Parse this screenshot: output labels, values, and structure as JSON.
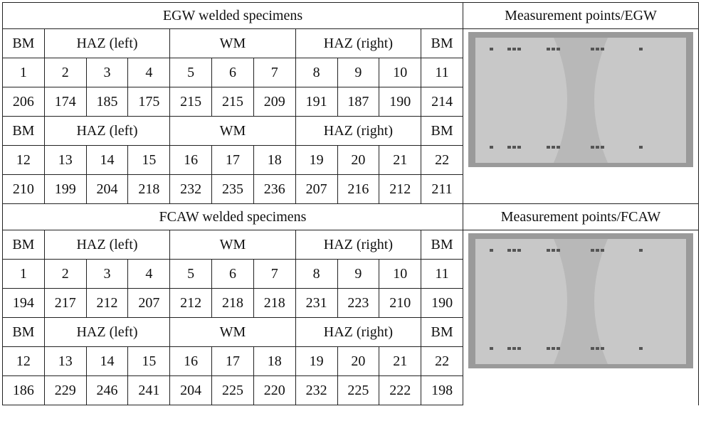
{
  "sections": [
    {
      "title": "EGW welded specimens",
      "image_caption": "Measurement points/EGW",
      "blocks": [
        {
          "groups": [
            "BM",
            "HAZ (left)",
            "WM",
            "HAZ (right)",
            "BM"
          ],
          "points": [
            1,
            2,
            3,
            4,
            5,
            6,
            7,
            8,
            9,
            10,
            11
          ],
          "values": [
            206,
            174,
            185,
            175,
            215,
            215,
            209,
            191,
            187,
            190,
            214
          ]
        },
        {
          "groups": [
            "BM",
            "HAZ (left)",
            "WM",
            "HAZ (right)",
            "BM"
          ],
          "points": [
            12,
            13,
            14,
            15,
            16,
            17,
            18,
            19,
            20,
            21,
            22
          ],
          "values": [
            210,
            199,
            204,
            218,
            232,
            235,
            236,
            207,
            216,
            212,
            211
          ]
        }
      ]
    },
    {
      "title": "FCAW welded specimens",
      "image_caption": "Measurement points/FCAW",
      "blocks": [
        {
          "groups": [
            "BM",
            "HAZ (left)",
            "WM",
            "HAZ (right)",
            "BM"
          ],
          "points": [
            1,
            2,
            3,
            4,
            5,
            6,
            7,
            8,
            9,
            10,
            11
          ],
          "values": [
            194,
            217,
            212,
            207,
            212,
            218,
            218,
            231,
            223,
            210,
            190
          ]
        },
        {
          "groups": [
            "BM",
            "HAZ (left)",
            "WM",
            "HAZ (right)",
            "BM"
          ],
          "points": [
            12,
            13,
            14,
            15,
            16,
            17,
            18,
            19,
            20,
            21,
            22
          ],
          "values": [
            186,
            229,
            246,
            241,
            204,
            225,
            220,
            232,
            225,
            222,
            198
          ]
        }
      ]
    }
  ]
}
